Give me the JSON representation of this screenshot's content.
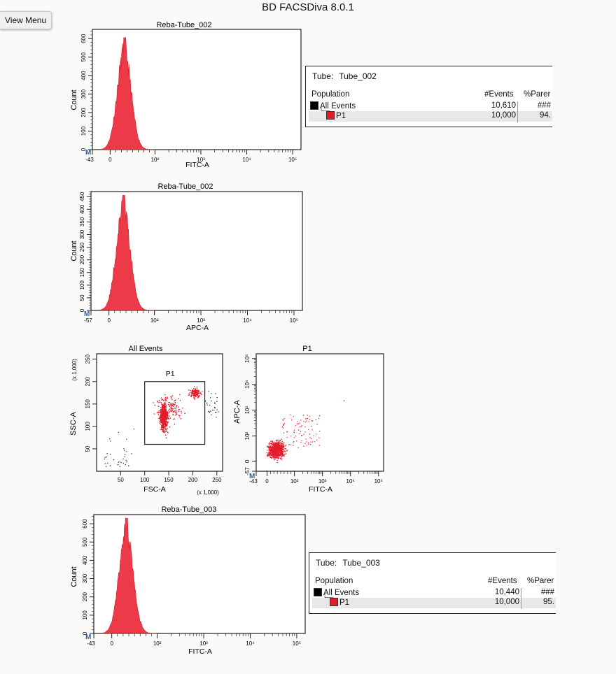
{
  "app": {
    "title": "BD FACSDiva 8.0.1",
    "view_menu_label": "View Menu"
  },
  "colors": {
    "event": "#e01e2b",
    "fill": "#ec3a48",
    "all_events": "#000000",
    "p1": "#e01e2b"
  },
  "stats": [
    {
      "tube_label": "Tube:",
      "tube_value": "Tube_002",
      "headers": {
        "population": "Population",
        "events": "#Events",
        "parent": "%Parer"
      },
      "rows": [
        {
          "name": "All Events",
          "events": "10,610",
          "parent": "###",
          "color": "#000000"
        },
        {
          "name": "P1",
          "events": "10,000",
          "parent": "94.",
          "color": "#e01e2b"
        }
      ]
    },
    {
      "tube_label": "Tube:",
      "tube_value": "Tube_003",
      "headers": {
        "population": "Population",
        "events": "#Events",
        "parent": "%Parer"
      },
      "rows": [
        {
          "name": "All Events",
          "events": "10,440",
          "parent": "###",
          "color": "#000000"
        },
        {
          "name": "P1",
          "events": "10,000",
          "parent": "95.",
          "color": "#e01e2b"
        }
      ]
    }
  ],
  "chart_data": [
    {
      "type": "histogram",
      "title": "Reba-Tube_002",
      "xlabel": "FITC-A",
      "ylabel": "Count",
      "x_scale": "biexponential",
      "x_ticks": [
        "-43",
        "0",
        "10²",
        "10³",
        "10⁴",
        "10⁵"
      ],
      "y_ticks": [
        "0",
        "100",
        "200",
        "300",
        "400",
        "500",
        "600"
      ],
      "ylim": [
        0,
        650
      ],
      "marker": "M",
      "peak_count": 605,
      "peak_position": "near 10¹ FITC-A",
      "distribution": "single unimodal peak spanning roughly 0 to 10²"
    },
    {
      "type": "histogram",
      "title": "Reba-Tube_002",
      "xlabel": "APC-A",
      "ylabel": "Count",
      "x_scale": "biexponential",
      "x_ticks": [
        "-57",
        "0",
        "10²",
        "10³",
        "10⁴",
        "10⁵"
      ],
      "y_ticks": [
        "0",
        "50",
        "100",
        "150",
        "200",
        "250",
        "300",
        "350",
        "400",
        "450"
      ],
      "ylim": [
        0,
        470
      ],
      "marker": "M",
      "peak_count": 455,
      "peak_position": "near 10¹ APC-A",
      "distribution": "single unimodal peak spanning roughly 0 to 10²"
    },
    {
      "type": "scatter",
      "title": "All Events",
      "xlabel": "FSC-A",
      "ylabel": "SSC-A",
      "x_units": "(x 1,000)",
      "y_units": "(x 1,000)",
      "x_ticks": [
        "50",
        "100",
        "150",
        "200",
        "250"
      ],
      "y_ticks": [
        "50",
        "100",
        "150",
        "200",
        "250"
      ],
      "xlim": [
        0,
        262
      ],
      "ylim": [
        0,
        262
      ],
      "gate": {
        "name": "P1",
        "x_range": [
          100,
          225
        ],
        "y_range": [
          60,
          200
        ]
      },
      "clusters": [
        {
          "x": 140,
          "y": 125,
          "description": "main dense cluster"
        },
        {
          "x": 205,
          "y": 175,
          "description": "secondary cluster"
        }
      ]
    },
    {
      "type": "scatter",
      "title": "P1",
      "xlabel": "FITC-A",
      "ylabel": "APC-A",
      "x_scale": "biexponential",
      "y_scale": "biexponential",
      "x_ticks": [
        "-43",
        "0",
        "10²",
        "10³",
        "10⁴",
        "10⁵"
      ],
      "y_ticks": [
        "-57",
        "0",
        "10²",
        "10³",
        "10⁴",
        "10⁵"
      ],
      "marker": "M",
      "clusters": [
        {
          "x": "≈10¹",
          "y": "≈10¹",
          "description": "single dense cluster"
        }
      ]
    },
    {
      "type": "histogram",
      "title": "Reba-Tube_003",
      "xlabel": "FITC-A",
      "ylabel": "Count",
      "x_scale": "biexponential",
      "x_ticks": [
        "-43",
        "0",
        "10²",
        "10³",
        "10⁴",
        "10⁵"
      ],
      "y_ticks": [
        "0",
        "100",
        "200",
        "300",
        "400",
        "500",
        "600"
      ],
      "ylim": [
        0,
        650
      ],
      "marker": "M",
      "peak_count": 630,
      "peak_position": "near 10¹ FITC-A",
      "distribution": "single unimodal peak spanning roughly 0 to 10²"
    }
  ]
}
